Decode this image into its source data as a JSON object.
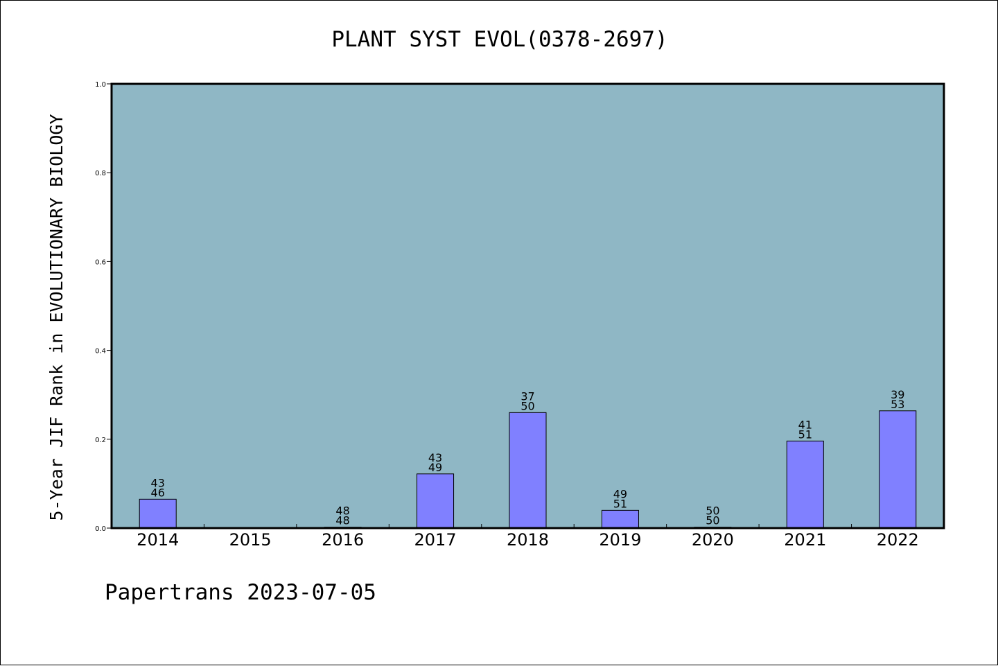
{
  "chart_data": {
    "type": "bar",
    "title": "PLANT SYST EVOL(0378-2697)",
    "xlabel": "",
    "ylabel": "5-Year JIF Rank in EVOLUTIONARY BIOLOGY",
    "ylim": [
      0,
      1.0
    ],
    "yticks": [
      "0.0",
      "0.2",
      "0.4",
      "0.6",
      "0.8",
      "1.0"
    ],
    "categories": [
      "2014",
      "2015",
      "2016",
      "2017",
      "2018",
      "2019",
      "2020",
      "2021",
      "2022"
    ],
    "values": [
      0.065,
      0,
      0.002,
      0.122,
      0.26,
      0.04,
      0.002,
      0.196,
      0.264
    ],
    "labels_top": [
      "43",
      "",
      "48",
      "43",
      "37",
      "49",
      "50",
      "41",
      "39"
    ],
    "labels_bottom": [
      "46",
      "",
      "48",
      "49",
      "50",
      "51",
      "50",
      "51",
      "53"
    ],
    "grid": false,
    "legend": "none",
    "colors": {
      "plot_background": "#8fb7c5",
      "bar_fill": "#8080ff",
      "bar_stroke": "#000000",
      "axis": "#000000"
    }
  },
  "footer": {
    "text": "Papertrans 2023-07-05"
  }
}
